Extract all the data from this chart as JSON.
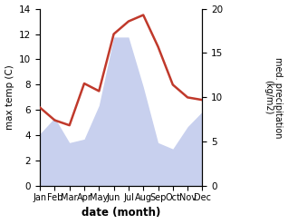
{
  "months": [
    "Jan",
    "Feb",
    "Mar",
    "Apr",
    "May",
    "Jun",
    "Jul",
    "Aug",
    "Sep",
    "Oct",
    "Nov",
    "Dec"
  ],
  "month_positions": [
    1,
    2,
    3,
    4,
    5,
    6,
    7,
    8,
    9,
    10,
    11,
    12
  ],
  "temperature": [
    6.2,
    5.2,
    4.8,
    8.1,
    7.5,
    12.0,
    13.0,
    13.5,
    11.0,
    8.0,
    7.0,
    6.8
  ],
  "precipitation": [
    5.9,
    7.7,
    4.9,
    5.3,
    9.1,
    16.8,
    16.8,
    11.2,
    4.9,
    4.2,
    6.7,
    8.4
  ],
  "temp_color": "#c0392b",
  "precip_color_fill": "#c8d0ee",
  "temp_ylim": [
    0,
    14
  ],
  "precip_ylim": [
    0,
    20
  ],
  "temp_yticks": [
    0,
    2,
    4,
    6,
    8,
    10,
    12,
    14
  ],
  "precip_yticks": [
    0,
    5,
    10,
    15,
    20
  ],
  "xlabel": "date (month)",
  "ylabel_left": "max temp (C)",
  "ylabel_right": "med. precipitation\n(kg/m2)",
  "background_color": "#ffffff",
  "line_width": 1.8
}
